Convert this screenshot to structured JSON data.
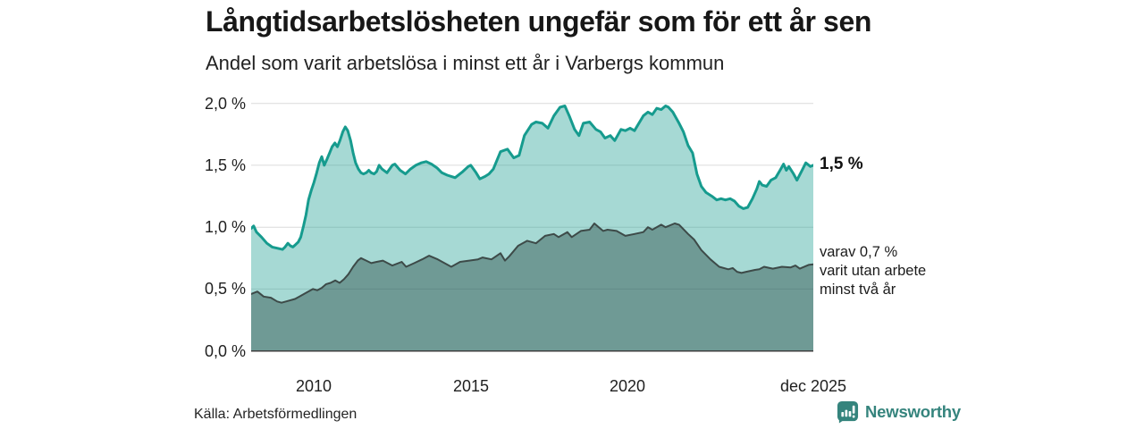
{
  "chart_data": {
    "type": "area",
    "title": "Långtidsarbetslösheten ungefär som för ett år sen",
    "subtitle": "Andel som varit arbetslösa i minst ett år i Varbergs kommun",
    "unit": "%",
    "grid": true,
    "legend_position": "right-annotations",
    "x_axis": {
      "range": [
        2008.0,
        2025.92
      ],
      "ticks": [
        {
          "label": "2010",
          "year": 2010.0
        },
        {
          "label": "2015",
          "year": 2015.0
        },
        {
          "label": "2020",
          "year": 2020.0
        },
        {
          "label": "dec 2025",
          "year": 2025.92
        }
      ]
    },
    "y_axis": {
      "range": [
        0.0,
        2.0
      ],
      "ticks": [
        {
          "label": "2,0 %",
          "value": 2.0
        },
        {
          "label": "1,5 %",
          "value": 1.5
        },
        {
          "label": "1,0 %",
          "value": 1.0
        },
        {
          "label": "0,5 %",
          "value": 0.5
        },
        {
          "label": "0,0 %",
          "value": 0.0
        }
      ]
    },
    "annotations": {
      "end_value_label": "1,5 %",
      "secondary_label": "varav 0,7 %\nvarit utan arbete\nminst två år"
    },
    "series": [
      {
        "id": "arbetslosa-minst-ett-ar",
        "name": "Andel som varit arbetslösa i minst ett år",
        "end_value": 1.5,
        "stroke": "#169b8e",
        "stroke_width": 3,
        "fill": "#169b8e",
        "fill_opacity": 0.38,
        "points": [
          [
            2008.0,
            0.99
          ],
          [
            2008.08,
            1.01
          ],
          [
            2008.17,
            0.96
          ],
          [
            2008.33,
            0.92
          ],
          [
            2008.5,
            0.87
          ],
          [
            2008.67,
            0.84
          ],
          [
            2008.83,
            0.83
          ],
          [
            2009.0,
            0.82
          ],
          [
            2009.08,
            0.84
          ],
          [
            2009.17,
            0.87
          ],
          [
            2009.25,
            0.85
          ],
          [
            2009.33,
            0.84
          ],
          [
            2009.42,
            0.86
          ],
          [
            2009.5,
            0.88
          ],
          [
            2009.58,
            0.92
          ],
          [
            2009.67,
            1.01
          ],
          [
            2009.75,
            1.1
          ],
          [
            2009.83,
            1.22
          ],
          [
            2009.92,
            1.3
          ],
          [
            2010.0,
            1.36
          ],
          [
            2010.08,
            1.43
          ],
          [
            2010.17,
            1.52
          ],
          [
            2010.25,
            1.57
          ],
          [
            2010.33,
            1.5
          ],
          [
            2010.42,
            1.55
          ],
          [
            2010.5,
            1.6
          ],
          [
            2010.58,
            1.65
          ],
          [
            2010.67,
            1.68
          ],
          [
            2010.75,
            1.65
          ],
          [
            2010.83,
            1.7
          ],
          [
            2010.92,
            1.77
          ],
          [
            2011.0,
            1.81
          ],
          [
            2011.08,
            1.78
          ],
          [
            2011.17,
            1.7
          ],
          [
            2011.25,
            1.6
          ],
          [
            2011.33,
            1.52
          ],
          [
            2011.42,
            1.47
          ],
          [
            2011.5,
            1.44
          ],
          [
            2011.58,
            1.43
          ],
          [
            2011.67,
            1.44
          ],
          [
            2011.75,
            1.46
          ],
          [
            2011.83,
            1.44
          ],
          [
            2011.92,
            1.43
          ],
          [
            2012.0,
            1.45
          ],
          [
            2012.08,
            1.5
          ],
          [
            2012.17,
            1.47
          ],
          [
            2012.33,
            1.44
          ],
          [
            2012.5,
            1.5
          ],
          [
            2012.58,
            1.51
          ],
          [
            2012.75,
            1.46
          ],
          [
            2012.92,
            1.43
          ],
          [
            2013.08,
            1.47
          ],
          [
            2013.25,
            1.5
          ],
          [
            2013.42,
            1.52
          ],
          [
            2013.58,
            1.53
          ],
          [
            2013.75,
            1.51
          ],
          [
            2013.92,
            1.48
          ],
          [
            2014.08,
            1.44
          ],
          [
            2014.25,
            1.42
          ],
          [
            2014.5,
            1.4
          ],
          [
            2014.75,
            1.45
          ],
          [
            2014.92,
            1.49
          ],
          [
            2015.0,
            1.5
          ],
          [
            2015.17,
            1.44
          ],
          [
            2015.29,
            1.39
          ],
          [
            2015.46,
            1.41
          ],
          [
            2015.58,
            1.43
          ],
          [
            2015.72,
            1.47
          ],
          [
            2015.95,
            1.61
          ],
          [
            2016.17,
            1.63
          ],
          [
            2016.37,
            1.56
          ],
          [
            2016.54,
            1.58
          ],
          [
            2016.71,
            1.74
          ],
          [
            2016.94,
            1.83
          ],
          [
            2017.08,
            1.85
          ],
          [
            2017.28,
            1.84
          ],
          [
            2017.46,
            1.8
          ],
          [
            2017.65,
            1.9
          ],
          [
            2017.85,
            1.97
          ],
          [
            2018.0,
            1.98
          ],
          [
            2018.14,
            1.9
          ],
          [
            2018.31,
            1.79
          ],
          [
            2018.45,
            1.74
          ],
          [
            2018.59,
            1.84
          ],
          [
            2018.79,
            1.85
          ],
          [
            2018.99,
            1.79
          ],
          [
            2019.14,
            1.77
          ],
          [
            2019.28,
            1.72
          ],
          [
            2019.45,
            1.74
          ],
          [
            2019.59,
            1.7
          ],
          [
            2019.79,
            1.79
          ],
          [
            2019.93,
            1.78
          ],
          [
            2020.08,
            1.8
          ],
          [
            2020.22,
            1.78
          ],
          [
            2020.5,
            1.9
          ],
          [
            2020.65,
            1.93
          ],
          [
            2020.79,
            1.91
          ],
          [
            2020.93,
            1.96
          ],
          [
            2021.07,
            1.95
          ],
          [
            2021.21,
            1.98
          ],
          [
            2021.3,
            1.97
          ],
          [
            2021.44,
            1.93
          ],
          [
            2021.64,
            1.84
          ],
          [
            2021.78,
            1.77
          ],
          [
            2021.93,
            1.66
          ],
          [
            2022.07,
            1.6
          ],
          [
            2022.21,
            1.43
          ],
          [
            2022.35,
            1.33
          ],
          [
            2022.5,
            1.28
          ],
          [
            2022.69,
            1.25
          ],
          [
            2022.84,
            1.22
          ],
          [
            2022.98,
            1.23
          ],
          [
            2023.12,
            1.22
          ],
          [
            2023.27,
            1.23
          ],
          [
            2023.41,
            1.21
          ],
          [
            2023.55,
            1.17
          ],
          [
            2023.69,
            1.15
          ],
          [
            2023.83,
            1.16
          ],
          [
            2023.98,
            1.23
          ],
          [
            2024.12,
            1.31
          ],
          [
            2024.2,
            1.37
          ],
          [
            2024.29,
            1.34
          ],
          [
            2024.43,
            1.33
          ],
          [
            2024.57,
            1.38
          ],
          [
            2024.72,
            1.4
          ],
          [
            2024.86,
            1.46
          ],
          [
            2024.97,
            1.51
          ],
          [
            2025.06,
            1.46
          ],
          [
            2025.14,
            1.49
          ],
          [
            2025.29,
            1.43
          ],
          [
            2025.4,
            1.38
          ],
          [
            2025.54,
            1.45
          ],
          [
            2025.68,
            1.52
          ],
          [
            2025.83,
            1.49
          ],
          [
            2025.92,
            1.5
          ]
        ]
      },
      {
        "id": "utan-arbete-minst-tva-ar",
        "name": "varav utan arbete minst två år",
        "end_value": 0.7,
        "stroke": "#3d4a48",
        "stroke_width": 2,
        "fill": "#24423d",
        "fill_opacity": 0.42,
        "points": [
          [
            2008.0,
            0.46
          ],
          [
            2008.2,
            0.48
          ],
          [
            2008.4,
            0.44
          ],
          [
            2008.63,
            0.43
          ],
          [
            2008.83,
            0.4
          ],
          [
            2008.97,
            0.39
          ],
          [
            2009.11,
            0.4
          ],
          [
            2009.4,
            0.42
          ],
          [
            2009.54,
            0.44
          ],
          [
            2009.68,
            0.46
          ],
          [
            2009.97,
            0.5
          ],
          [
            2010.11,
            0.49
          ],
          [
            2010.25,
            0.51
          ],
          [
            2010.39,
            0.54
          ],
          [
            2010.53,
            0.55
          ],
          [
            2010.68,
            0.57
          ],
          [
            2010.82,
            0.55
          ],
          [
            2010.96,
            0.58
          ],
          [
            2011.1,
            0.62
          ],
          [
            2011.25,
            0.68
          ],
          [
            2011.4,
            0.73
          ],
          [
            2011.5,
            0.75
          ],
          [
            2011.67,
            0.73
          ],
          [
            2011.83,
            0.71
          ],
          [
            2012.0,
            0.72
          ],
          [
            2012.2,
            0.73
          ],
          [
            2012.5,
            0.69
          ],
          [
            2012.8,
            0.72
          ],
          [
            2012.94,
            0.68
          ],
          [
            2013.2,
            0.71
          ],
          [
            2013.45,
            0.74
          ],
          [
            2013.67,
            0.77
          ],
          [
            2013.95,
            0.74
          ],
          [
            2014.38,
            0.68
          ],
          [
            2014.66,
            0.72
          ],
          [
            2014.95,
            0.73
          ],
          [
            2015.23,
            0.74
          ],
          [
            2015.38,
            0.755
          ],
          [
            2015.66,
            0.74
          ],
          [
            2015.95,
            0.79
          ],
          [
            2016.09,
            0.73
          ],
          [
            2016.23,
            0.765
          ],
          [
            2016.51,
            0.85
          ],
          [
            2016.8,
            0.89
          ],
          [
            2017.08,
            0.87
          ],
          [
            2017.37,
            0.93
          ],
          [
            2017.65,
            0.945
          ],
          [
            2017.8,
            0.92
          ],
          [
            2018.08,
            0.96
          ],
          [
            2018.22,
            0.92
          ],
          [
            2018.51,
            0.97
          ],
          [
            2018.79,
            0.98
          ],
          [
            2018.94,
            1.03
          ],
          [
            2019.08,
            1.0
          ],
          [
            2019.22,
            0.97
          ],
          [
            2019.36,
            0.98
          ],
          [
            2019.65,
            0.97
          ],
          [
            2019.93,
            0.93
          ],
          [
            2020.22,
            0.945
          ],
          [
            2020.5,
            0.96
          ],
          [
            2020.65,
            1.0
          ],
          [
            2020.79,
            0.98
          ],
          [
            2021.07,
            1.02
          ],
          [
            2021.21,
            1.0
          ],
          [
            2021.5,
            1.03
          ],
          [
            2021.64,
            1.02
          ],
          [
            2021.93,
            0.945
          ],
          [
            2022.12,
            0.9
          ],
          [
            2022.35,
            0.815
          ],
          [
            2022.64,
            0.74
          ],
          [
            2022.92,
            0.68
          ],
          [
            2023.21,
            0.66
          ],
          [
            2023.35,
            0.67
          ],
          [
            2023.49,
            0.64
          ],
          [
            2023.63,
            0.63
          ],
          [
            2023.78,
            0.64
          ],
          [
            2024.06,
            0.655
          ],
          [
            2024.2,
            0.66
          ],
          [
            2024.35,
            0.68
          ],
          [
            2024.63,
            0.665
          ],
          [
            2024.92,
            0.68
          ],
          [
            2025.2,
            0.675
          ],
          [
            2025.35,
            0.69
          ],
          [
            2025.49,
            0.665
          ],
          [
            2025.77,
            0.695
          ],
          [
            2025.92,
            0.7
          ]
        ]
      }
    ]
  },
  "footer": {
    "source": "Källa: Arbetsförmedlingen",
    "brand": "Newsworthy"
  },
  "colors": {
    "accent_teal": "#169b8e",
    "area_light_effective": "#a3d6d1",
    "area_dark_effective": "#6f9c97",
    "dark_line": "#3d4a48",
    "gridline": "#dcdcdc",
    "baseline": "#3f3f3f",
    "brand_teal": "#35847d",
    "text_dark": "#171717"
  }
}
